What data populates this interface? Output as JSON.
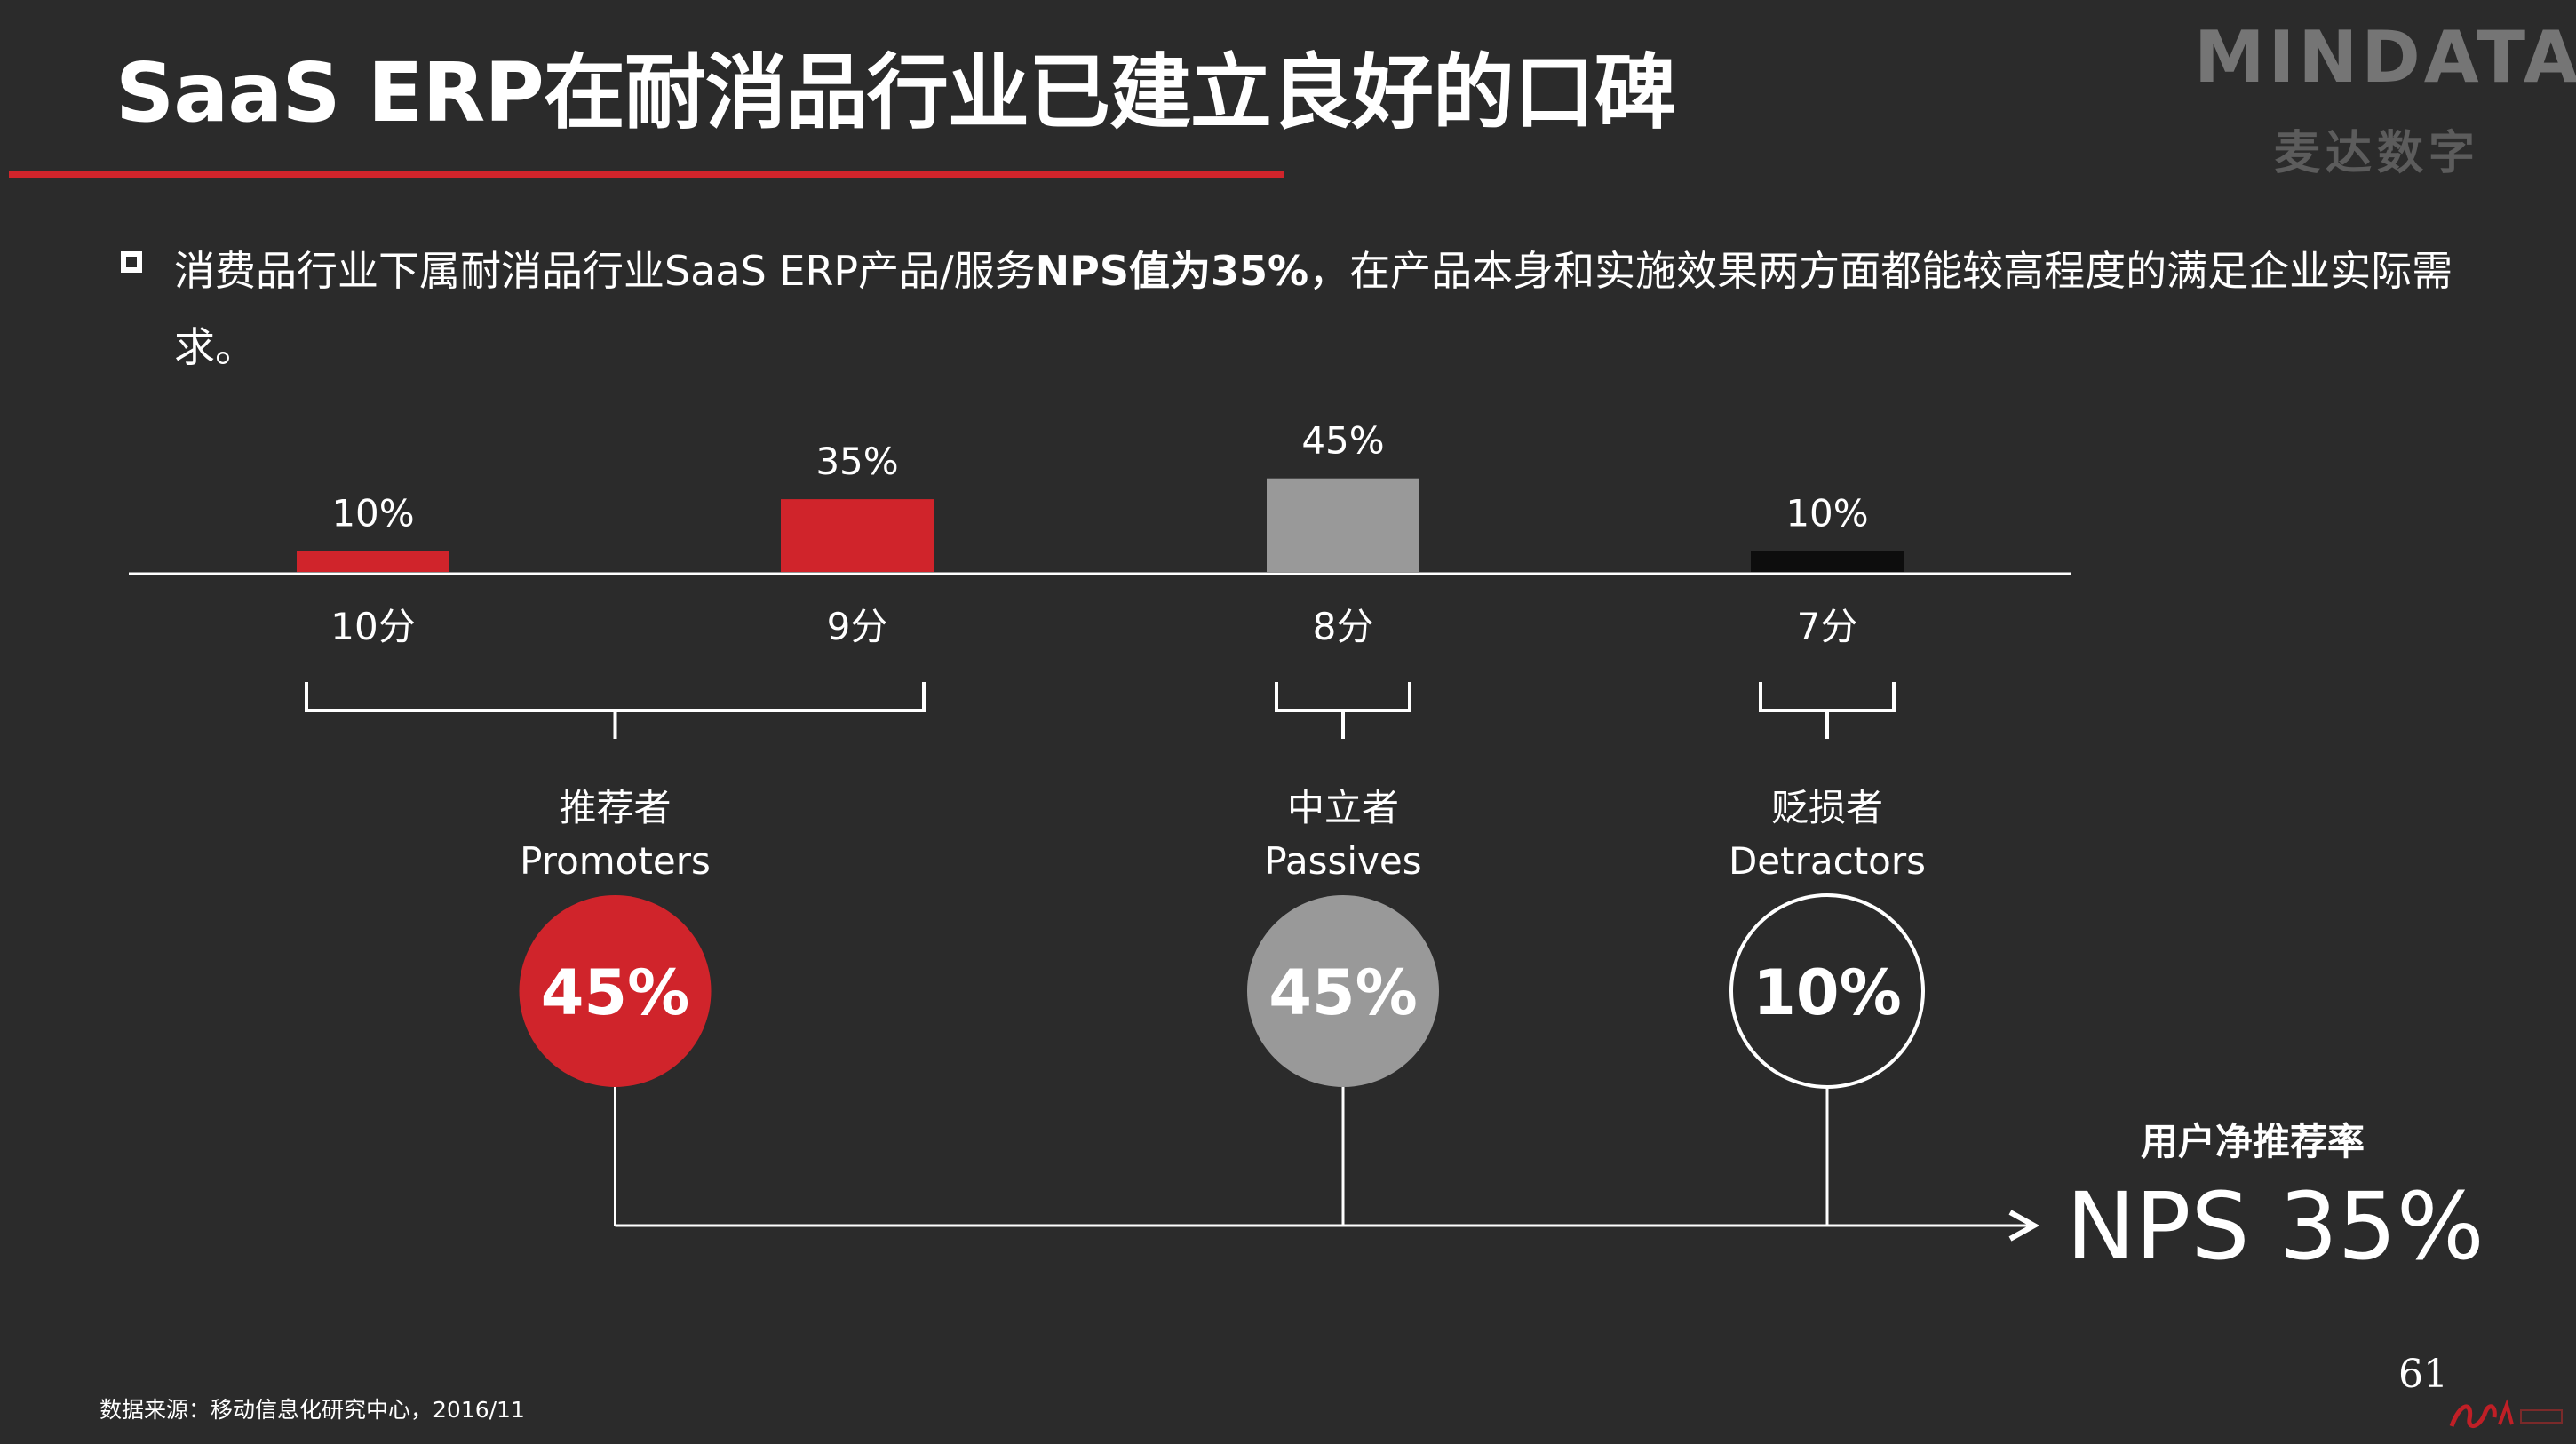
{
  "slide": {
    "title": "SaaS ERP在耐消品行业已建立良好的口碑",
    "bullet": {
      "prefix": "消费品行业下属耐消品行业SaaS ERP产品/服务",
      "highlight": "NPS值为35%",
      "suffix": "，在产品本身和实施效果两方面都能较高程度的满足企业实际需求。"
    },
    "logo": {
      "main": "MINDATA",
      "sub": "麦达数字"
    },
    "source": "数据来源：移动信息化研究中心，2016/11",
    "page_number": "61",
    "nps": {
      "label": "用户净推荐率",
      "value": "NPS  35%"
    }
  },
  "colors": {
    "background": "#2b2b2b",
    "accent_red": "#d0242b",
    "passive_gray": "#999999",
    "detractor_black": "#0d0d0d",
    "text": "#ffffff"
  },
  "chart_data": {
    "type": "bar",
    "categories": [
      "10分",
      "9分",
      "8分",
      "7分"
    ],
    "values": [
      10,
      35,
      45,
      10
    ],
    "value_labels": [
      "10%",
      "35%",
      "45%",
      "10%"
    ],
    "ylim": [
      0,
      100
    ],
    "bar_colors": [
      "#d0242b",
      "#d0242b",
      "#999999",
      "#0d0d0d"
    ],
    "groups": [
      {
        "name_cn": "推荐者",
        "name_en": "Promoters",
        "share": "45%",
        "covers": [
          0,
          1
        ],
        "fill": "#d0242b",
        "outline": false
      },
      {
        "name_cn": "中立者",
        "name_en": "Passives",
        "share": "45%",
        "covers": [
          2
        ],
        "fill": "#999999",
        "outline": false
      },
      {
        "name_cn": "贬损者",
        "name_en": "Detractors",
        "share": "10%",
        "covers": [
          3
        ],
        "fill": "#2b2b2b",
        "outline": true
      }
    ]
  }
}
